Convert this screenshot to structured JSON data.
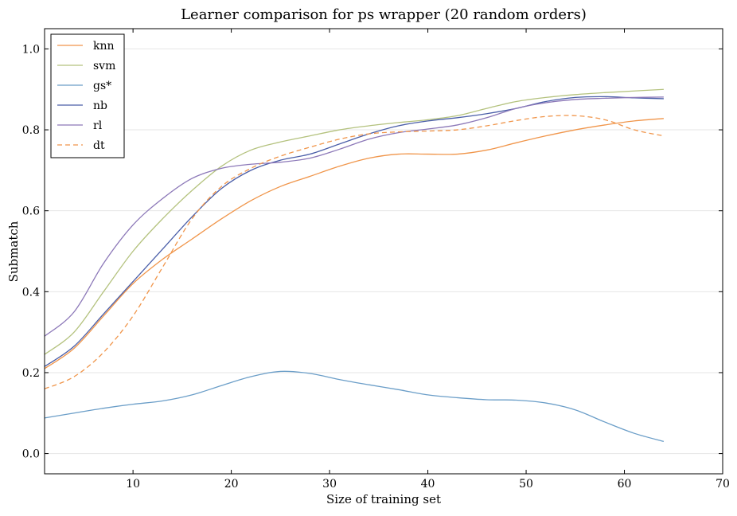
{
  "chart_data": {
    "type": "line",
    "title": "Learner comparison for ps wrapper (20 random orders)",
    "xlabel": "Size of training set",
    "ylabel": "Submatch",
    "xlim": [
      1,
      70
    ],
    "ylim": [
      -0.05,
      1.05
    ],
    "xticks": [
      10,
      20,
      30,
      40,
      50,
      60,
      70
    ],
    "yticks": [
      0.0,
      0.2,
      0.4,
      0.6,
      0.8,
      1.0
    ],
    "xtick_labels": [
      "10",
      "20",
      "30",
      "40",
      "50",
      "60",
      "70"
    ],
    "ytick_labels": [
      "0.0",
      "0.2",
      "0.4",
      "0.6",
      "0.8",
      "1.0"
    ],
    "grid": true,
    "legend_position": "top-left",
    "x": [
      1,
      4,
      7,
      10,
      13,
      16,
      19,
      22,
      25,
      28,
      31,
      34,
      37,
      40,
      43,
      46,
      49,
      52,
      55,
      58,
      61,
      64
    ],
    "series": [
      {
        "name": "knn",
        "color": "#f0954a",
        "dash": "solid",
        "values": [
          0.21,
          0.26,
          0.34,
          0.42,
          0.48,
          0.53,
          0.58,
          0.625,
          0.66,
          0.685,
          0.71,
          0.73,
          0.74,
          0.74,
          0.74,
          0.75,
          0.768,
          0.785,
          0.8,
          0.812,
          0.822,
          0.828
        ]
      },
      {
        "name": "svm",
        "color": "#b4c27e",
        "dash": "solid",
        "values": [
          0.245,
          0.3,
          0.4,
          0.5,
          0.58,
          0.65,
          0.71,
          0.75,
          0.77,
          0.785,
          0.8,
          0.81,
          0.818,
          0.825,
          0.835,
          0.853,
          0.87,
          0.88,
          0.887,
          0.892,
          0.896,
          0.9
        ]
      },
      {
        "name": "gs*",
        "color": "#6b9ec8",
        "dash": "solid",
        "values": [
          0.088,
          0.1,
          0.112,
          0.122,
          0.13,
          0.145,
          0.168,
          0.19,
          0.203,
          0.198,
          0.183,
          0.17,
          0.158,
          0.145,
          0.138,
          0.133,
          0.132,
          0.125,
          0.108,
          0.078,
          0.05,
          0.03
        ]
      },
      {
        "name": "nb",
        "color": "#4a5ea8",
        "dash": "solid",
        "values": [
          0.215,
          0.265,
          0.345,
          0.425,
          0.505,
          0.585,
          0.655,
          0.7,
          0.725,
          0.74,
          0.765,
          0.79,
          0.81,
          0.822,
          0.83,
          0.84,
          0.853,
          0.87,
          0.88,
          0.882,
          0.879,
          0.877
        ]
      },
      {
        "name": "rl",
        "color": "#8c78b8",
        "dash": "solid",
        "values": [
          0.29,
          0.35,
          0.47,
          0.565,
          0.63,
          0.68,
          0.705,
          0.715,
          0.72,
          0.73,
          0.752,
          0.777,
          0.793,
          0.802,
          0.812,
          0.83,
          0.853,
          0.867,
          0.875,
          0.878,
          0.88,
          0.881
        ]
      },
      {
        "name": "dt",
        "color": "#f0954a",
        "dash": "dashed",
        "values": [
          0.16,
          0.19,
          0.25,
          0.34,
          0.46,
          0.58,
          0.66,
          0.705,
          0.735,
          0.757,
          0.777,
          0.79,
          0.795,
          0.797,
          0.8,
          0.81,
          0.823,
          0.833,
          0.835,
          0.825,
          0.8,
          0.785
        ]
      }
    ]
  }
}
